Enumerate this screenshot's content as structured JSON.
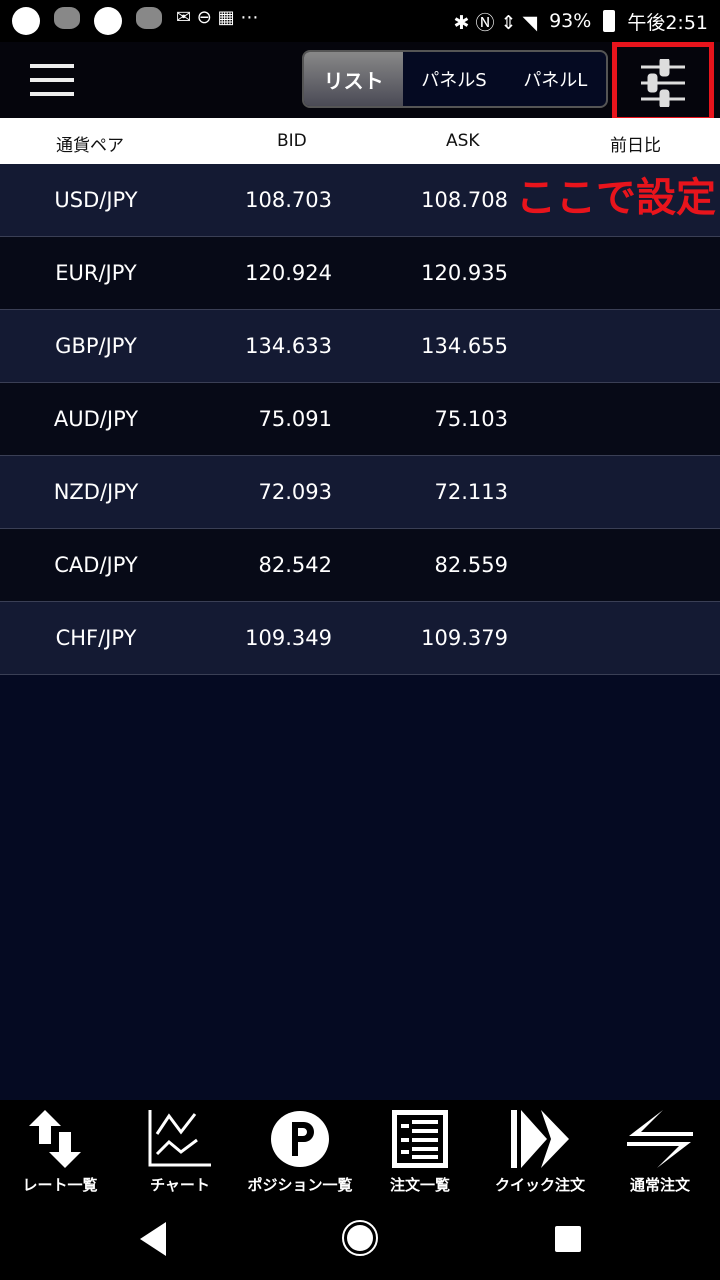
{
  "status": {
    "battery": "93%",
    "time": "午後2:51"
  },
  "tabs": [
    {
      "label": "リスト",
      "active": true
    },
    {
      "label": "パネルS"
    },
    {
      "label": "パネルL"
    }
  ],
  "columns": [
    "通貨ペア",
    "BID",
    "ASK",
    "前日比"
  ],
  "annotation": "ここで設定",
  "accent": "#e8141c",
  "rates": [
    {
      "pair": "USD/JPY",
      "bid": "108.703",
      "ask": "108.708"
    },
    {
      "pair": "EUR/JPY",
      "bid": "120.924",
      "ask": "120.935"
    },
    {
      "pair": "GBP/JPY",
      "bid": "134.633",
      "ask": "134.655"
    },
    {
      "pair": "AUD/JPY",
      "bid": "75.091",
      "ask": "75.103"
    },
    {
      "pair": "NZD/JPY",
      "bid": "72.093",
      "ask": "72.113"
    },
    {
      "pair": "CAD/JPY",
      "bid": "82.542",
      "ask": "82.559"
    },
    {
      "pair": "CHF/JPY",
      "bid": "109.349",
      "ask": "109.379"
    }
  ],
  "nav": [
    {
      "label": "レート一覧",
      "icon": "arrows-up-down-icon"
    },
    {
      "label": "チャート",
      "icon": "chart-icon"
    },
    {
      "label": "ポジション一覧",
      "icon": "position-p-icon"
    },
    {
      "label": "注文一覧",
      "icon": "order-list-icon"
    },
    {
      "label": "クイック注文",
      "icon": "quick-order-icon"
    },
    {
      "label": "通常注文",
      "icon": "normal-order-icon"
    }
  ]
}
